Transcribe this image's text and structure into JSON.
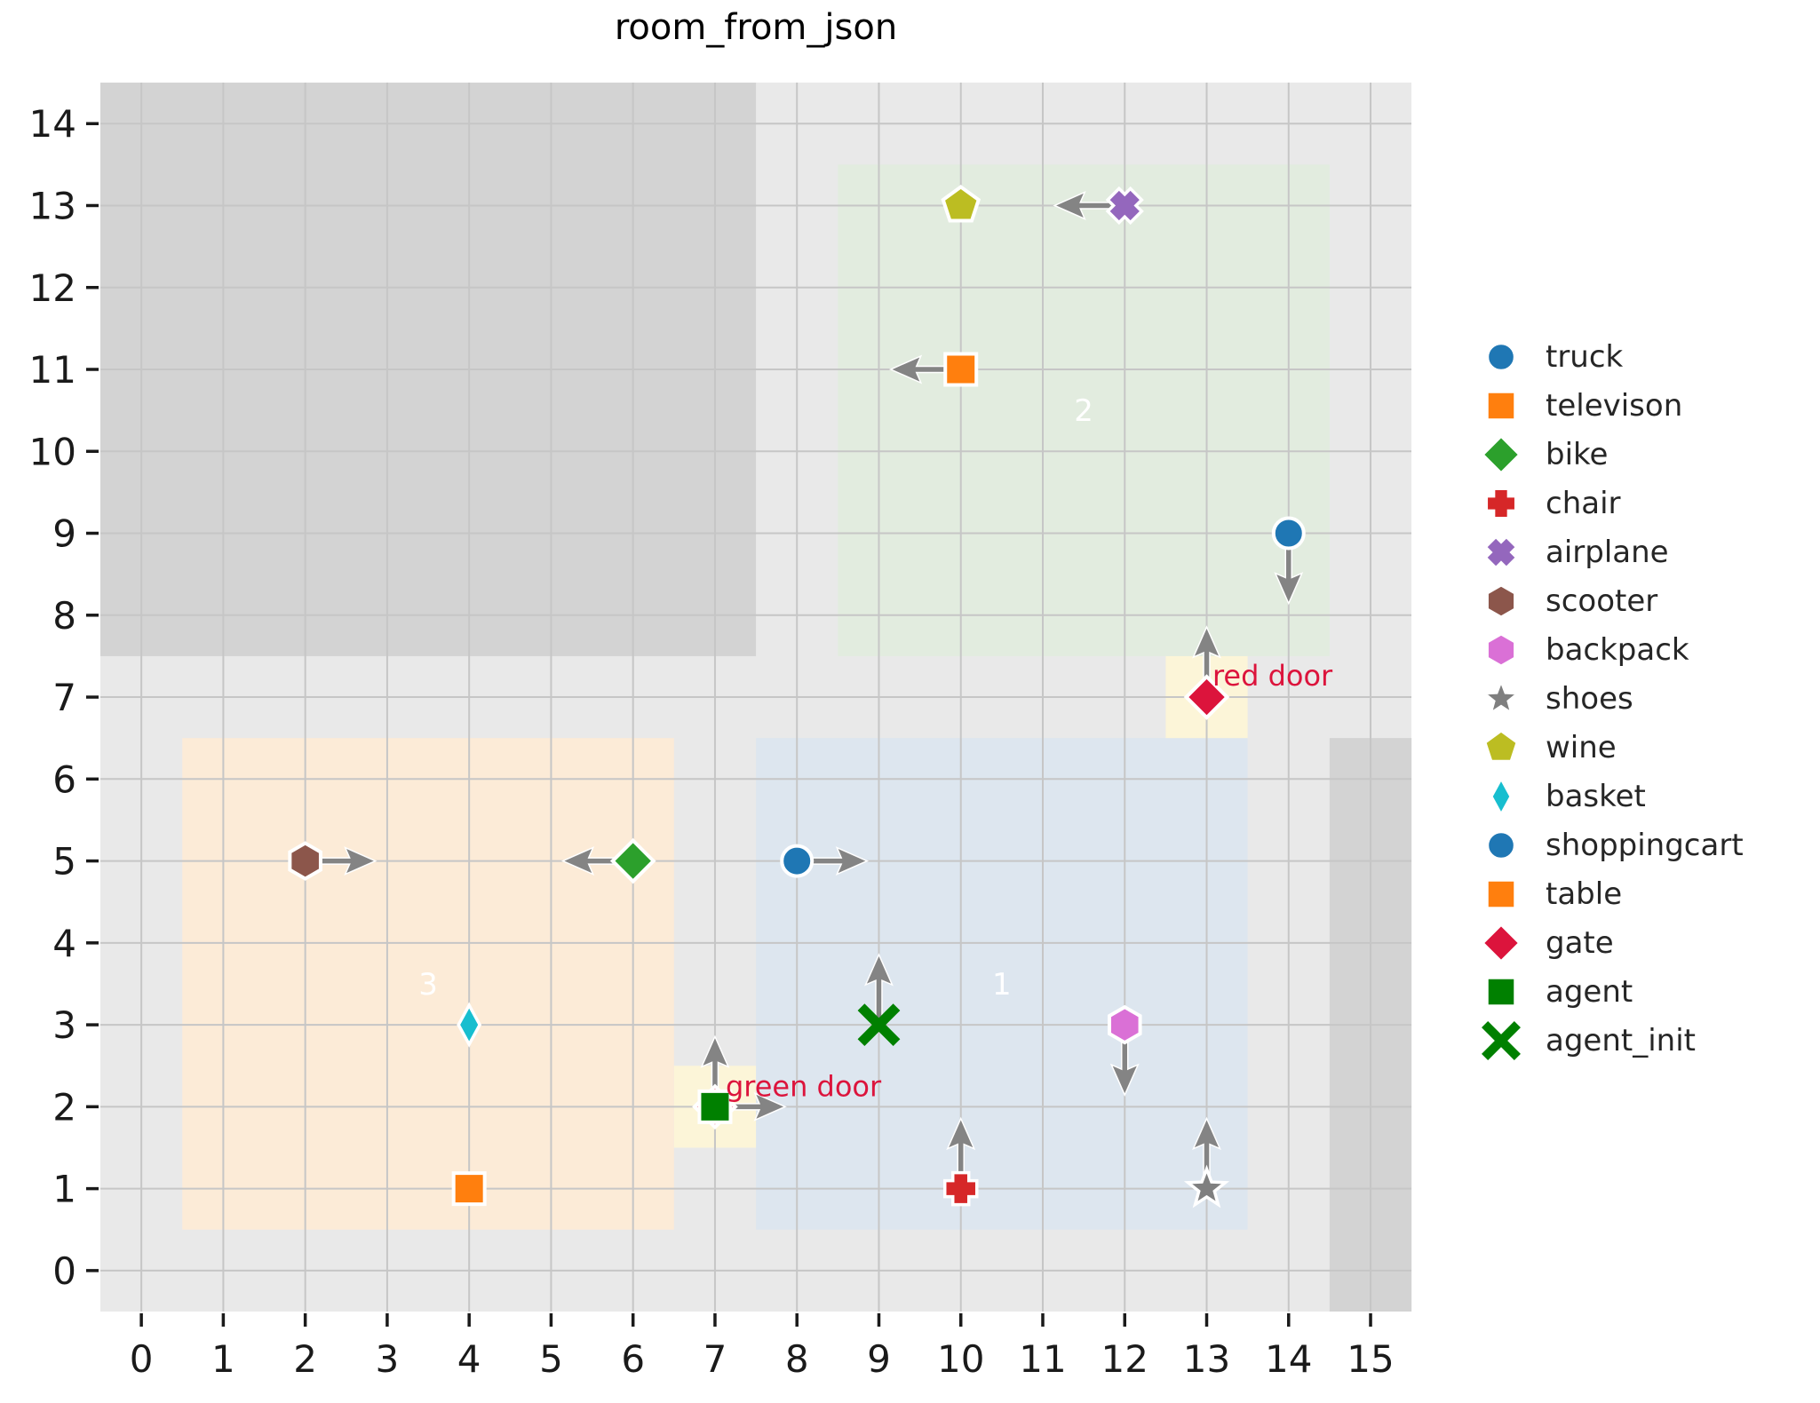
{
  "title": "room_from_json",
  "colors": {
    "plot_bg": "#e9e9e9",
    "wall": "#d3d3d3",
    "door_area": "#fcf5d8",
    "grid": "#c6c6c6",
    "arrow": "#848484",
    "door_text": "#dc143c",
    "room_label": "#ffffff",
    "tick": "#1a1a1a",
    "tick_label": "#1a1a1a"
  },
  "chart_data": {
    "type": "scatter",
    "title": "room_from_json",
    "xlabel": "",
    "ylabel": "",
    "xlim": [
      -0.5,
      15.5
    ],
    "ylim": [
      -0.5,
      14.5
    ],
    "grid": true,
    "x_ticks": [
      0,
      1,
      2,
      3,
      4,
      5,
      6,
      7,
      8,
      9,
      10,
      11,
      12,
      13,
      14,
      15
    ],
    "y_ticks": [
      0,
      1,
      2,
      3,
      4,
      5,
      6,
      7,
      8,
      9,
      10,
      11,
      12,
      13,
      14
    ],
    "walls": [
      {
        "name": "wall-top-left",
        "area": [
          -0.5,
          7.5,
          7.5,
          14.5
        ]
      },
      {
        "name": "wall-right",
        "area": [
          14.5,
          -0.5,
          15.5,
          6.5
        ]
      }
    ],
    "rooms": [
      {
        "label": "2",
        "area": [
          8.5,
          7.5,
          14.5,
          13.5
        ],
        "color": "#e2ecdf",
        "label_pos": [
          11.5,
          10.5
        ]
      },
      {
        "label": "3",
        "area": [
          0.5,
          0.5,
          6.5,
          6.5
        ],
        "color": "#fcebd7",
        "label_pos": [
          3.5,
          3.5
        ]
      },
      {
        "label": "1",
        "area": [
          7.5,
          0.5,
          13.5,
          6.5
        ],
        "color": "#dde6ef",
        "label_pos": [
          10.5,
          3.5
        ]
      }
    ],
    "doors": [
      {
        "label": "red door",
        "area": [
          12.5,
          6.5,
          13.5,
          7.5
        ],
        "text_pos": [
          13.07,
          7.26
        ]
      },
      {
        "label": "green door",
        "area": [
          6.5,
          1.5,
          7.5,
          2.5
        ],
        "text_pos": [
          7.13,
          2.25
        ]
      }
    ],
    "objects": [
      {
        "name": "gate-red-door",
        "legend": "gate",
        "marker": "diamond",
        "color": "#dc143c",
        "x": 13,
        "y": 7,
        "dir": "up"
      },
      {
        "name": "gate-green-door",
        "legend": "gate",
        "marker": "diamond",
        "color": "#dc143c",
        "x": 7,
        "y": 2,
        "dir": "up"
      },
      {
        "name": "truck",
        "legend": "truck",
        "marker": "circle",
        "color": "#1f77b4",
        "x": 14,
        "y": 9,
        "dir": "down"
      },
      {
        "name": "televison",
        "legend": "televison",
        "marker": "square",
        "color": "#ff7f0e",
        "x": 10,
        "y": 11,
        "dir": "left"
      },
      {
        "name": "bike",
        "legend": "bike",
        "marker": "diamond",
        "color": "#2ca02c",
        "x": 6,
        "y": 5,
        "dir": "left"
      },
      {
        "name": "chair",
        "legend": "chair",
        "marker": "plus",
        "color": "#d62728",
        "x": 10,
        "y": 1,
        "dir": "up"
      },
      {
        "name": "airplane",
        "legend": "airplane",
        "marker": "x",
        "color": "#9467bd",
        "x": 12,
        "y": 13,
        "dir": "left"
      },
      {
        "name": "scooter",
        "legend": "scooter",
        "marker": "hexagon",
        "color": "#8c564b",
        "x": 2,
        "y": 5,
        "dir": "right"
      },
      {
        "name": "backpack",
        "legend": "backpack",
        "marker": "hexagon",
        "color": "#da70d6",
        "x": 12,
        "y": 3,
        "dir": "down"
      },
      {
        "name": "shoes",
        "legend": "shoes",
        "marker": "star",
        "color": "#7f7f7f",
        "x": 13,
        "y": 1,
        "dir": "up"
      },
      {
        "name": "wine",
        "legend": "wine",
        "marker": "pentagon",
        "color": "#bcbd22",
        "x": 10,
        "y": 13,
        "dir": null
      },
      {
        "name": "basket",
        "legend": "basket",
        "marker": "thin_diamond",
        "color": "#17becf",
        "x": 4,
        "y": 3,
        "dir": null
      },
      {
        "name": "shoppingcart",
        "legend": "shoppingcart",
        "marker": "circle",
        "color": "#1f77b4",
        "x": 8,
        "y": 5,
        "dir": "right"
      },
      {
        "name": "table",
        "legend": "table",
        "marker": "square",
        "color": "#ff7f0e",
        "x": 4,
        "y": 1,
        "dir": null
      },
      {
        "name": "agent",
        "legend": "agent",
        "marker": "square",
        "color": "#008000",
        "x": 7,
        "y": 2,
        "dir": "right"
      },
      {
        "name": "agent_init",
        "legend": "agent_init",
        "marker": "x_plain",
        "color": "#008000",
        "x": 9,
        "y": 3,
        "dir": "up"
      }
    ]
  },
  "legend": {
    "items": [
      {
        "label": "truck",
        "marker": "circle",
        "color": "#1f77b4"
      },
      {
        "label": "televison",
        "marker": "square",
        "color": "#ff7f0e"
      },
      {
        "label": "bike",
        "marker": "diamond",
        "color": "#2ca02c"
      },
      {
        "label": "chair",
        "marker": "plus",
        "color": "#d62728"
      },
      {
        "label": "airplane",
        "marker": "x",
        "color": "#9467bd"
      },
      {
        "label": "scooter",
        "marker": "hexagon",
        "color": "#8c564b"
      },
      {
        "label": "backpack",
        "marker": "hexagon",
        "color": "#da70d6"
      },
      {
        "label": "shoes",
        "marker": "star",
        "color": "#7f7f7f"
      },
      {
        "label": "wine",
        "marker": "pentagon",
        "color": "#bcbd22"
      },
      {
        "label": "basket",
        "marker": "thin_diamond",
        "color": "#17becf"
      },
      {
        "label": "shoppingcart",
        "marker": "circle",
        "color": "#1f77b4"
      },
      {
        "label": "table",
        "marker": "square",
        "color": "#ff7f0e"
      },
      {
        "label": "gate",
        "marker": "diamond",
        "color": "#dc143c"
      },
      {
        "label": "agent",
        "marker": "square",
        "color": "#008000"
      },
      {
        "label": "agent_init",
        "marker": "x_plain",
        "color": "#008000"
      }
    ]
  }
}
